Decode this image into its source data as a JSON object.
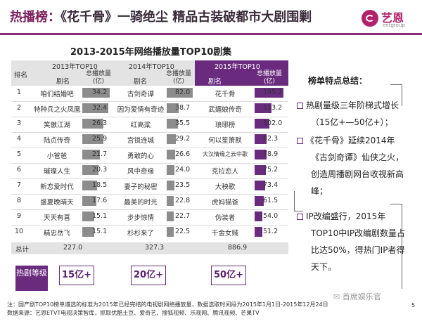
{
  "header": {
    "title_prefix": "热播榜：",
    "title_main": "《花千骨》一骑绝尘   精品古装破都市大剧围剿",
    "logo_text": "艺恩",
    "logo_sub": "entgroup"
  },
  "table": {
    "title": "2013-2015年网络播放量TOP10剧集",
    "rank_header": "排名",
    "groups": [
      {
        "label": "2013年TOP10",
        "name_header": "剧名",
        "value_header": "总播放量(亿)"
      },
      {
        "label": "2014年TOP10",
        "name_header": "剧名",
        "value_header": "总播放量(亿)"
      },
      {
        "label": "2015年TOP10",
        "name_header": "剧名",
        "value_header": "总播放量(亿)"
      }
    ],
    "rows": [
      {
        "rank": "1",
        "n13": "咱们结婚吧",
        "v13": 34.2,
        "n14": "古剑奇谭",
        "v14": 82.0,
        "n15": "花千骨",
        "v15": 195.2
      },
      {
        "rank": "2",
        "n13": "特种兵之火凤凰",
        "v13": 32.4,
        "n14": "因为爱情有奇迹",
        "v14": 38.7,
        "n15": "武媚娘传奇",
        "v15": 113.2
      },
      {
        "rank": "3",
        "n13": "笑傲江湖",
        "v13": 26.3,
        "n14": "红高粱",
        "v14": 35.5,
        "n15": "琅琊榜",
        "v15": 102.0
      },
      {
        "rank": "4",
        "n13": "陆贞传奇",
        "v13": 25.9,
        "n14": "宫锁连城",
        "v14": 29.2,
        "n15": "何以笙箫默",
        "v15": 82.3
      },
      {
        "rank": "5",
        "n13": "小爸爸",
        "v13": 21.7,
        "n14": "勇敢的心",
        "v14": 26.6,
        "n15": "大汉情缘之云中歌",
        "v15": 78.9
      },
      {
        "rank": "6",
        "n13": "璀璨人生",
        "v13": 20.3,
        "n14": "风中奇缘",
        "v14": 24.0,
        "n15": "克拉恋人",
        "v15": 75.2
      },
      {
        "rank": "7",
        "n13": "新恋爱时代",
        "v13": 18.5,
        "n14": "妻子的秘密",
        "v14": 23.5,
        "n15": "大秧歌",
        "v15": 73.4
      },
      {
        "rank": "8",
        "n13": "盛夏晚晴天",
        "v13": 17.6,
        "n14": "最美的时光",
        "v14": 22.8,
        "n15": "虎妈猫爸",
        "v15": 61.5
      },
      {
        "rank": "9",
        "n13": "天天有喜",
        "v13": 15.1,
        "n14": "步步惊情",
        "v14": 22.7,
        "n15": "伪装者",
        "v15": 54.0
      },
      {
        "rank": "10",
        "n13": "精忠岳飞",
        "v13": 15.1,
        "n14": "杉杉来了",
        "v14": 22.5,
        "n15": "千金女贼",
        "v15": 51.2
      }
    ],
    "total_label": "总计",
    "totals": [
      "227.0",
      "327.3",
      "886.9"
    ]
  },
  "levels": {
    "label": "热剧等级",
    "badges": [
      "15亿+",
      "20亿+",
      "50亿+"
    ]
  },
  "panel": {
    "title": "榜单特点总结：",
    "bullets": [
      [
        "热剧量级三年阶梯式增长",
        "（15亿+—50亿+）；"
      ],
      [
        "《花千骨》延续2014年",
        "《古剑奇谭》仙侠之火，",
        "创造周播剧网台收视新高",
        "峰；"
      ],
      [
        "IP改编盛行，2015年",
        "TOP10中IP改编剧数量占",
        "比达50%，得热门IP者得",
        "天下。"
      ]
    ]
  },
  "footer": {
    "note": "注：国产剧TOP10榜单遴选的标准为2015年已经完结的电视剧网络播放量，数据选取时间段为2015年1月1日-2015年12月24日",
    "source": "数据来源：艺恩ETVT电视决策智库，抓取优酷土豆、爱奇艺、搜狐视频、乐视网、腾讯视频、芒果TV",
    "watermark": "首席娱乐官",
    "page": "5"
  },
  "colors": {
    "accent": "#6a2b7e",
    "bar_gray": "#8c8c8c",
    "brand": "#b0226a"
  }
}
